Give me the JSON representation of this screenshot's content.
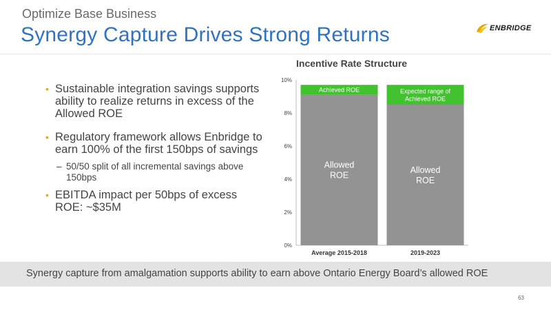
{
  "header": {
    "kicker": "Optimize Base Business",
    "title": "Synergy Capture Drives Strong Returns",
    "logo_text": "ENBRIDGE",
    "logo_icon": "enbridge-flame-mark"
  },
  "bullets": [
    {
      "text": "Sustainable integration savings supports ability to realize returns in excess of the Allowed ROE",
      "subs": []
    },
    {
      "text": "Regulatory framework allows Enbridge to earn 100% of the first 150bps of savings",
      "subs": [
        "50/50 split of all incremental savings above 150bps"
      ]
    },
    {
      "text": "EBITDA impact per 50bps of excess ROE: ~$35M",
      "subs": []
    }
  ],
  "bullet_marker": "•",
  "sub_marker": "–",
  "chart_data": {
    "type": "bar",
    "stacked": true,
    "title": "Incentive Rate Structure",
    "categories": [
      "Average 2015-2018",
      "2019-2023"
    ],
    "series": [
      {
        "name": "Allowed ROE",
        "values": [
          9.1,
          8.5
        ],
        "labels": [
          "Allowed\nROE",
          "Allowed\nROE"
        ],
        "color": "#939393"
      },
      {
        "name": "Achieved ROE",
        "values": [
          0.6,
          1.2
        ],
        "labels": [
          "Achieved ROE",
          "Expected range of\nAchieved ROE"
        ],
        "color": "#43c22f"
      }
    ],
    "ylim": [
      0,
      10
    ],
    "yticks": [
      "0%",
      "2%",
      "4%",
      "6%",
      "8%",
      "10%"
    ],
    "xlabel": "",
    "ylabel": "",
    "grid": false
  },
  "banner": {
    "text": "Synergy capture from amalgamation supports ability to earn above Ontario Energy Board’s allowed ROE"
  },
  "page_number": "63"
}
